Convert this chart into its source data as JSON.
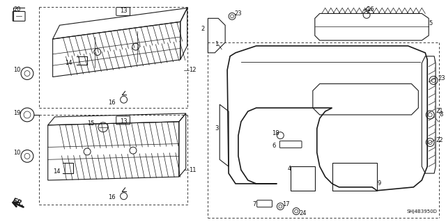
{
  "bg_color": "#ffffff",
  "line_color": "#1a1a1a",
  "fig_width": 6.4,
  "fig_height": 3.19,
  "dpi": 100,
  "diagram_code": "SHJ4B3950D"
}
